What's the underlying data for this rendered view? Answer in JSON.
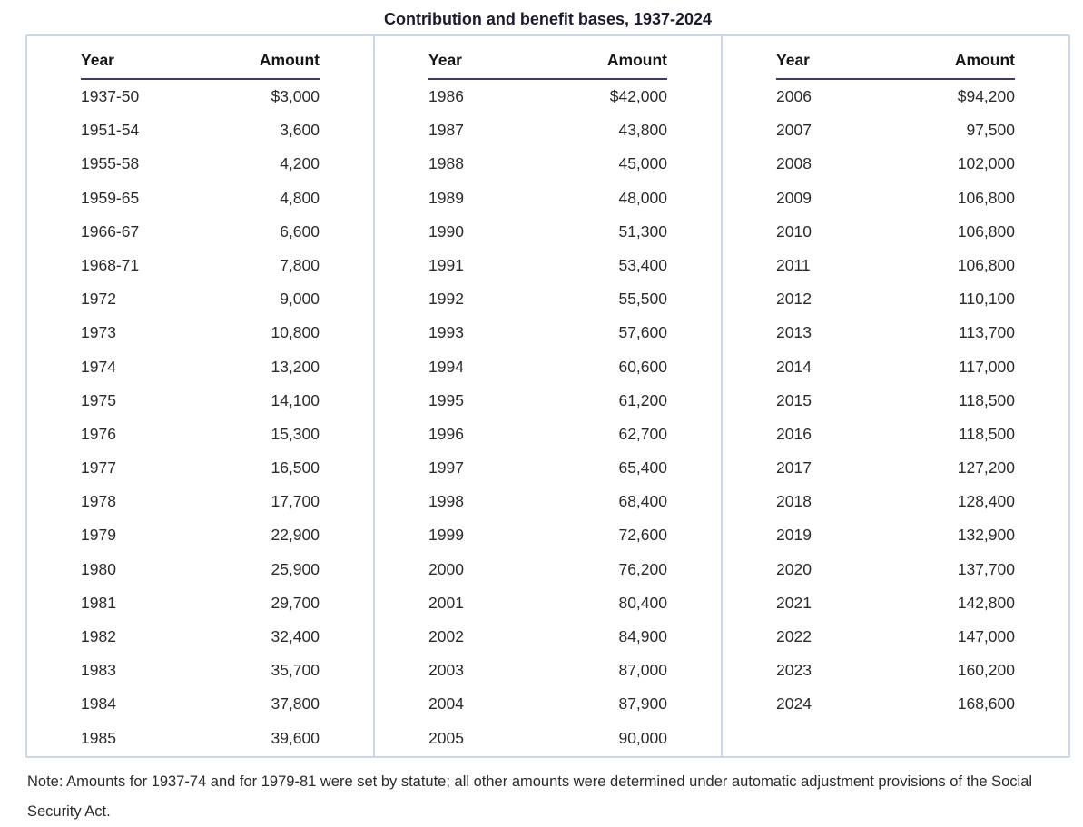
{
  "title": "Contribution and benefit bases, 1937-2024",
  "columns_header": {
    "year": "Year",
    "amount": "Amount"
  },
  "panels": [
    {
      "rows": [
        {
          "year": "1937-50",
          "amount": "$3,000"
        },
        {
          "year": "1951-54",
          "amount": "3,600"
        },
        {
          "year": "1955-58",
          "amount": "4,200"
        },
        {
          "year": "1959-65",
          "amount": "4,800"
        },
        {
          "year": "1966-67",
          "amount": "6,600"
        },
        {
          "year": "1968-71",
          "amount": "7,800"
        },
        {
          "year": "1972",
          "amount": "9,000"
        },
        {
          "year": "1973",
          "amount": "10,800"
        },
        {
          "year": "1974",
          "amount": "13,200"
        },
        {
          "year": "1975",
          "amount": "14,100"
        },
        {
          "year": "1976",
          "amount": "15,300"
        },
        {
          "year": "1977",
          "amount": "16,500"
        },
        {
          "year": "1978",
          "amount": "17,700"
        },
        {
          "year": "1979",
          "amount": "22,900"
        },
        {
          "year": "1980",
          "amount": "25,900"
        },
        {
          "year": "1981",
          "amount": "29,700"
        },
        {
          "year": "1982",
          "amount": "32,400"
        },
        {
          "year": "1983",
          "amount": "35,700"
        },
        {
          "year": "1984",
          "amount": "37,800"
        },
        {
          "year": "1985",
          "amount": "39,600"
        }
      ]
    },
    {
      "rows": [
        {
          "year": "1986",
          "amount": "$42,000"
        },
        {
          "year": "1987",
          "amount": "43,800"
        },
        {
          "year": "1988",
          "amount": "45,000"
        },
        {
          "year": "1989",
          "amount": "48,000"
        },
        {
          "year": "1990",
          "amount": "51,300"
        },
        {
          "year": "1991",
          "amount": "53,400"
        },
        {
          "year": "1992",
          "amount": "55,500"
        },
        {
          "year": "1993",
          "amount": "57,600"
        },
        {
          "year": "1994",
          "amount": "60,600"
        },
        {
          "year": "1995",
          "amount": "61,200"
        },
        {
          "year": "1996",
          "amount": "62,700"
        },
        {
          "year": "1997",
          "amount": "65,400"
        },
        {
          "year": "1998",
          "amount": "68,400"
        },
        {
          "year": "1999",
          "amount": "72,600"
        },
        {
          "year": "2000",
          "amount": "76,200"
        },
        {
          "year": "2001",
          "amount": "80,400"
        },
        {
          "year": "2002",
          "amount": "84,900"
        },
        {
          "year": "2003",
          "amount": "87,000"
        },
        {
          "year": "2004",
          "amount": "87,900"
        },
        {
          "year": "2005",
          "amount": "90,000"
        }
      ]
    },
    {
      "rows": [
        {
          "year": "2006",
          "amount": "$94,200"
        },
        {
          "year": "2007",
          "amount": "97,500"
        },
        {
          "year": "2008",
          "amount": "102,000"
        },
        {
          "year": "2009",
          "amount": "106,800"
        },
        {
          "year": "2010",
          "amount": "106,800"
        },
        {
          "year": "2011",
          "amount": "106,800"
        },
        {
          "year": "2012",
          "amount": "110,100"
        },
        {
          "year": "2013",
          "amount": "113,700"
        },
        {
          "year": "2014",
          "amount": "117,000"
        },
        {
          "year": "2015",
          "amount": "118,500"
        },
        {
          "year": "2016",
          "amount": "118,500"
        },
        {
          "year": "2017",
          "amount": "127,200"
        },
        {
          "year": "2018",
          "amount": "128,400"
        },
        {
          "year": "2019",
          "amount": "132,900"
        },
        {
          "year": "2020",
          "amount": "137,700"
        },
        {
          "year": "2021",
          "amount": "142,800"
        },
        {
          "year": "2022",
          "amount": "147,000"
        },
        {
          "year": "2023",
          "amount": "160,200"
        },
        {
          "year": "2024",
          "amount": "168,600"
        }
      ]
    }
  ],
  "note": "Note: Amounts for 1937-74 and for 1979-81 were set by statute; all other amounts were determined under automatic adjustment provisions of the Social Security Act.",
  "colors": {
    "border": "#c8d8ea",
    "header_underline": "#3b3b64",
    "text": "#2b2b2b",
    "title": "#1b1b2f",
    "background": "#ffffff"
  }
}
